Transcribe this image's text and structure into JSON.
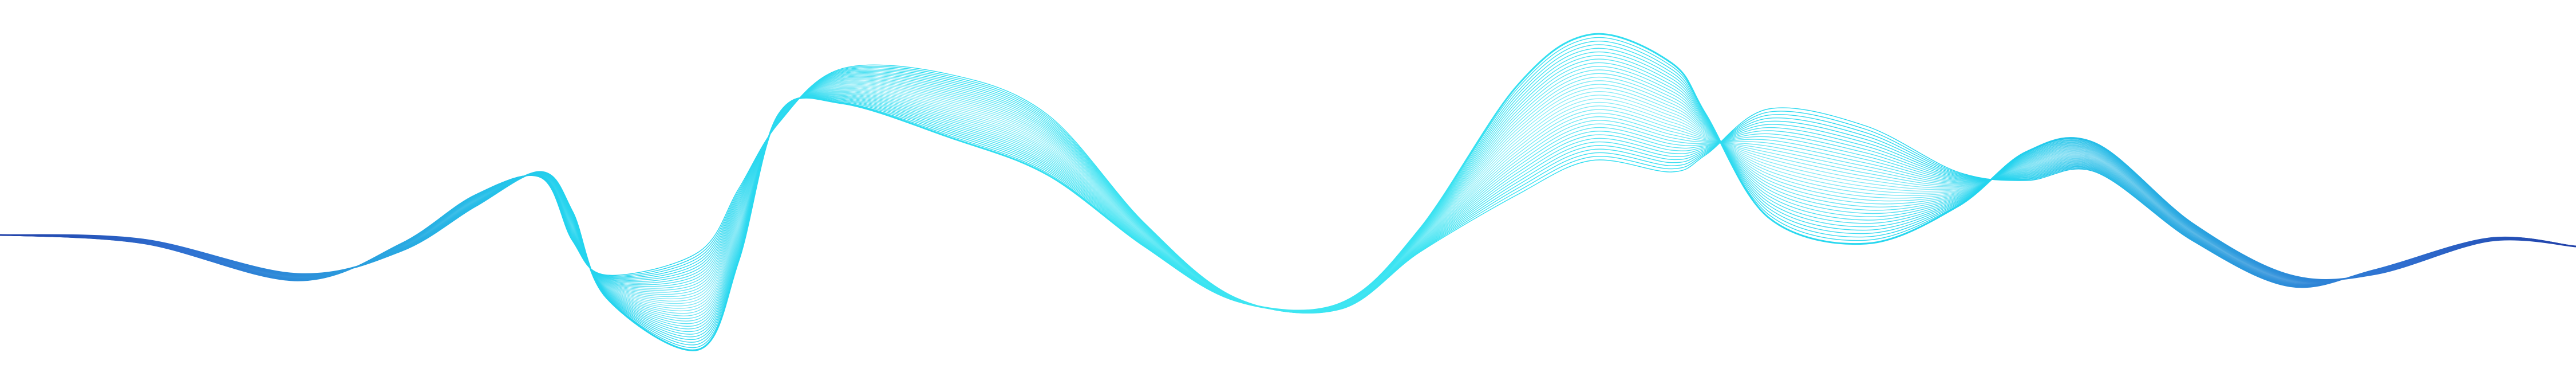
{
  "artwork": {
    "name": "abstract-wave-lines",
    "background": "#ffffff",
    "colors": {
      "deep_blue": "#1f3fa8",
      "mid_blue": "#2f6fd0",
      "cyan": "#22d3ee",
      "bright_cyan": "#3ee6f2"
    },
    "line_count": 36
  }
}
